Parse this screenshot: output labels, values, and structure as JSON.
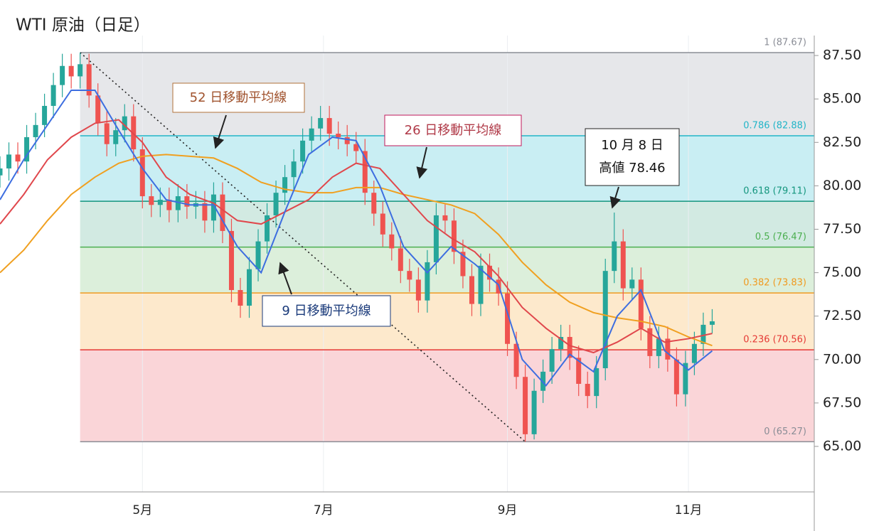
{
  "chart_data": {
    "type": "candlestick",
    "title": "WTI 原油（日足）",
    "xlim": [
      13,
      287.4
    ],
    "ylim": [
      62.38,
      88.65
    ],
    "xticks": [
      {
        "value": 61,
        "label": "5月"
      },
      {
        "value": 122,
        "label": "7月"
      },
      {
        "value": 184,
        "label": "9月"
      },
      {
        "value": 245,
        "label": "11月"
      }
    ],
    "yticks": [
      {
        "value": 65,
        "label": "65.00"
      },
      {
        "value": 67.5,
        "label": "67.50"
      },
      {
        "value": 70,
        "label": "70.00"
      },
      {
        "value": 72.5,
        "label": "72.50"
      },
      {
        "value": 75,
        "label": "75.00"
      },
      {
        "value": 77.5,
        "label": "77.50"
      },
      {
        "value": 80,
        "label": "80.00"
      },
      {
        "value": 82.5,
        "label": "82.50"
      },
      {
        "value": 85,
        "label": "85.00"
      },
      {
        "value": 87.5,
        "label": "87.50"
      }
    ],
    "up_color": "#26a69a",
    "down_color": "#ef5350",
    "candles": {
      "x": [
        13,
        16,
        19,
        22,
        25,
        28,
        31,
        34,
        37,
        40,
        43,
        46,
        49,
        52,
        55,
        58,
        61,
        64,
        67,
        70,
        73,
        76,
        79,
        82,
        85,
        88,
        91,
        94,
        97,
        100,
        103,
        106,
        109,
        112,
        115,
        118,
        121,
        124,
        127,
        130,
        133,
        136,
        139,
        142,
        145,
        148,
        151,
        154,
        157,
        160,
        163,
        166,
        169,
        172,
        175,
        178,
        181,
        184,
        187,
        190,
        193,
        196,
        199,
        202,
        205,
        208,
        211,
        214,
        217,
        220,
        223,
        226,
        229,
        232,
        235,
        238,
        241,
        244,
        247,
        250,
        253
      ],
      "open": [
        80.6,
        81.0,
        81.8,
        81.4,
        82.8,
        83.5,
        84.6,
        85.8,
        86.9,
        86.3,
        87.0,
        85.2,
        83.6,
        82.4,
        83.2,
        84.0,
        82.1,
        79.4,
        78.9,
        79.2,
        78.6,
        79.4,
        78.8,
        79.0,
        78.0,
        79.5,
        77.4,
        74.0,
        73.1,
        75.2,
        76.8,
        78.3,
        79.6,
        80.5,
        81.4,
        82.6,
        83.3,
        83.9,
        83.0,
        82.8,
        82.4,
        82.0,
        79.6,
        78.4,
        77.2,
        76.4,
        75.1,
        74.6,
        73.4,
        75.6,
        78.3,
        78.0,
        76.2,
        74.8,
        73.2,
        75.4,
        74.6,
        73.8,
        70.9,
        69.0,
        65.7,
        68.2,
        69.3,
        70.6,
        71.3,
        70.1,
        68.6,
        67.9,
        69.5,
        75.1,
        76.8,
        74.1,
        74.6,
        71.8,
        70.2,
        71.2,
        70.0,
        68.0,
        69.8,
        70.9,
        72.0
      ],
      "high": [
        81.7,
        82.5,
        82.5,
        83.5,
        84.2,
        85.3,
        86.5,
        87.6,
        87.6,
        87.67,
        87.6,
        85.9,
        84.3,
        83.9,
        84.7,
        84.7,
        82.8,
        80.1,
        79.9,
        79.9,
        80.1,
        80.1,
        79.7,
        79.7,
        80.2,
        80.2,
        78.1,
        74.7,
        75.9,
        77.5,
        79.0,
        80.3,
        81.2,
        82.1,
        83.3,
        84.0,
        84.6,
        84.6,
        83.7,
        83.5,
        83.1,
        82.7,
        80.3,
        79.1,
        77.9,
        77.1,
        75.8,
        75.3,
        76.3,
        79.0,
        79.0,
        78.7,
        76.9,
        75.5,
        76.1,
        76.1,
        75.3,
        74.5,
        71.6,
        69.7,
        68.9,
        70.0,
        71.3,
        72.0,
        72.0,
        70.8,
        69.3,
        70.2,
        75.8,
        78.46,
        77.5,
        75.3,
        75.3,
        72.5,
        71.9,
        71.9,
        70.7,
        70.5,
        71.6,
        72.7,
        72.9
      ],
      "low": [
        79.9,
        80.3,
        80.7,
        80.7,
        82.1,
        82.8,
        83.9,
        85.1,
        85.6,
        85.6,
        84.5,
        82.9,
        81.7,
        81.7,
        82.5,
        81.4,
        78.7,
        78.2,
        78.2,
        77.9,
        77.9,
        78.1,
        78.1,
        77.3,
        77.3,
        76.7,
        73.3,
        72.4,
        72.4,
        74.5,
        76.1,
        77.6,
        78.9,
        79.8,
        80.7,
        81.9,
        82.6,
        82.3,
        82.1,
        81.7,
        81.3,
        78.9,
        77.7,
        76.5,
        75.7,
        74.4,
        73.9,
        72.7,
        72.7,
        74.9,
        77.3,
        75.5,
        74.1,
        72.5,
        72.5,
        73.9,
        73.1,
        70.2,
        68.3,
        65.27,
        65.4,
        67.5,
        68.6,
        69.9,
        69.4,
        67.9,
        67.2,
        67.2,
        68.8,
        74.4,
        73.4,
        73.4,
        71.1,
        69.5,
        69.5,
        69.3,
        67.3,
        67.3,
        69.1,
        70.2,
        71.5
      ],
      "close": [
        81.0,
        81.8,
        81.4,
        82.8,
        83.5,
        84.6,
        85.8,
        86.9,
        86.3,
        87.0,
        85.2,
        83.6,
        82.4,
        83.2,
        84.0,
        82.1,
        79.4,
        78.9,
        79.2,
        78.6,
        79.4,
        78.8,
        79.0,
        78.0,
        79.5,
        77.4,
        74.0,
        73.1,
        75.2,
        76.8,
        78.3,
        79.6,
        80.5,
        81.4,
        82.6,
        83.3,
        83.9,
        83.0,
        82.8,
        82.4,
        82.0,
        79.6,
        78.4,
        77.2,
        76.4,
        75.1,
        74.6,
        73.4,
        75.6,
        78.3,
        78.0,
        76.2,
        74.8,
        73.2,
        75.4,
        74.6,
        73.8,
        70.9,
        69.0,
        65.7,
        68.2,
        69.3,
        70.6,
        71.3,
        70.1,
        68.6,
        67.9,
        69.5,
        75.1,
        76.8,
        74.1,
        74.6,
        71.8,
        70.2,
        71.2,
        70.0,
        68.0,
        69.8,
        70.9,
        72.0,
        72.2
      ]
    },
    "moving_averages": [
      {
        "color": "#f0a020",
        "x": [
          13,
          21,
          29,
          37,
          45,
          53,
          61,
          69,
          77,
          85,
          93,
          101,
          109,
          117,
          125,
          133,
          141,
          149,
          157,
          165,
          173,
          181,
          189,
          197,
          205,
          213,
          221,
          229,
          237,
          245,
          253
        ],
        "values": [
          75.0,
          76.3,
          78.0,
          79.5,
          80.5,
          81.3,
          81.7,
          81.8,
          81.7,
          81.6,
          81.0,
          80.2,
          79.8,
          79.6,
          79.6,
          79.9,
          79.9,
          79.5,
          79.2,
          78.9,
          78.4,
          77.2,
          75.6,
          74.3,
          73.3,
          72.7,
          72.4,
          72.2,
          71.9,
          71.3,
          70.8
        ]
      },
      {
        "color": "#e0474c",
        "x": [
          13,
          21,
          29,
          37,
          45,
          53,
          61,
          69,
          77,
          85,
          93,
          101,
          109,
          117,
          125,
          133,
          141,
          149,
          157,
          165,
          173,
          181,
          189,
          197,
          205,
          213,
          221,
          229,
          237,
          245,
          253
        ],
        "values": [
          77.8,
          79.5,
          81.5,
          82.8,
          83.6,
          83.8,
          82.5,
          80.5,
          79.5,
          79.0,
          78.0,
          77.8,
          78.5,
          79.2,
          80.5,
          81.3,
          81.0,
          79.5,
          78.0,
          77.0,
          76.2,
          74.8,
          73.0,
          71.8,
          70.8,
          70.4,
          71.0,
          71.8,
          71.0,
          71.2,
          71.5
        ]
      },
      {
        "color": "#3d6ee0",
        "x": [
          13,
          21,
          29,
          37,
          45,
          53,
          61,
          69,
          77,
          85,
          93,
          101,
          109,
          117,
          125,
          133,
          141,
          149,
          157,
          165,
          173,
          181,
          189,
          197,
          205,
          213,
          221,
          229,
          237,
          245,
          253
        ],
        "values": [
          79.2,
          81.5,
          83.5,
          85.5,
          85.5,
          83.2,
          81.0,
          79.2,
          78.9,
          78.9,
          76.5,
          75.0,
          78.5,
          81.8,
          82.8,
          82.6,
          80.0,
          76.5,
          75.0,
          76.5,
          75.5,
          74.3,
          70.0,
          68.5,
          70.3,
          69.3,
          72.5,
          74.0,
          70.5,
          69.4,
          70.5
        ]
      }
    ],
    "trendline": {
      "x": [
        40,
        190
      ],
      "y": [
        87.67,
        65.27
      ]
    },
    "fibonacci": {
      "levels": [
        {
          "label": "1 (87.67)",
          "value": 87.67,
          "color": "#8a8d96",
          "fill": "#e6e7ea"
        },
        {
          "label": "0.786 (82.88)",
          "value": 82.88,
          "color": "#22b5c8",
          "fill": "#c9eef3"
        },
        {
          "label": "0.618 (79.11)",
          "value": 79.11,
          "color": "#14967e",
          "fill": "#d2eae2"
        },
        {
          "label": "0.5 (76.47)",
          "value": 76.47,
          "color": "#4caf50",
          "fill": "#dcefdb"
        },
        {
          "label": "0.382 (73.83)",
          "value": 73.83,
          "color": "#f09a20",
          "fill": "#fde9cc"
        },
        {
          "label": "0.236 (70.56)",
          "value": 70.56,
          "color": "#e53935",
          "fill": "#fad5d8"
        },
        {
          "label": "0 (65.27)",
          "value": 65.27,
          "color": "#8a8d96"
        }
      ]
    },
    "annotations": {
      "ma52": "52 日移動平均線",
      "ma26": "26 日移動平均線",
      "ma9": "9 日移動平均線",
      "high": [
        "10 月 8 日",
        "高値 78.46"
      ]
    }
  }
}
